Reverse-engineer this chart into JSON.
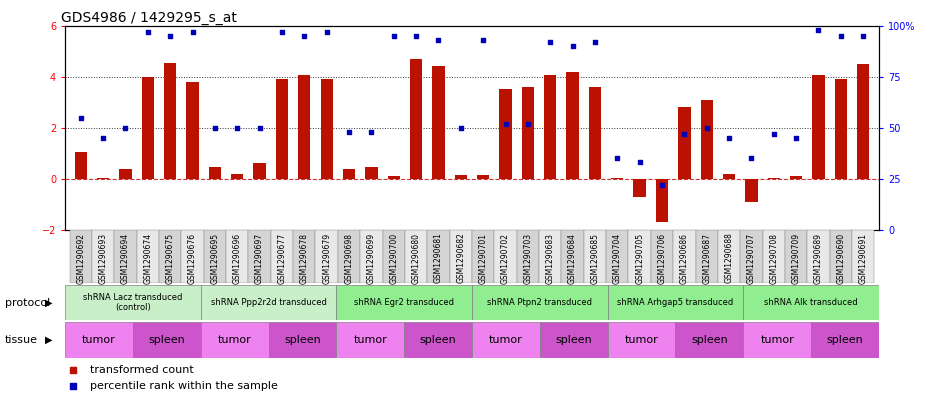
{
  "title": "GDS4986 / 1429295_s_at",
  "sample_ids": [
    "GSM1290692",
    "GSM1290693",
    "GSM1290694",
    "GSM1290674",
    "GSM1290675",
    "GSM1290676",
    "GSM1290695",
    "GSM1290696",
    "GSM1290697",
    "GSM1290677",
    "GSM1290678",
    "GSM1290679",
    "GSM1290698",
    "GSM1290699",
    "GSM1290700",
    "GSM1290680",
    "GSM1290681",
    "GSM1290682",
    "GSM1290701",
    "GSM1290702",
    "GSM1290703",
    "GSM1290683",
    "GSM1290684",
    "GSM1290685",
    "GSM1290704",
    "GSM1290705",
    "GSM1290706",
    "GSM1290686",
    "GSM1290687",
    "GSM1290688",
    "GSM1290707",
    "GSM1290708",
    "GSM1290709",
    "GSM1290689",
    "GSM1290690",
    "GSM1290691"
  ],
  "bar_values": [
    1.05,
    0.05,
    0.4,
    4.0,
    4.55,
    3.8,
    0.45,
    0.2,
    0.6,
    3.9,
    4.05,
    3.9,
    0.4,
    0.45,
    0.1,
    4.7,
    4.4,
    0.15,
    0.15,
    3.5,
    3.6,
    4.05,
    4.2,
    3.6,
    0.05,
    -0.7,
    -1.7,
    2.8,
    3.1,
    0.2,
    -0.9,
    0.05,
    0.1,
    4.05,
    3.9,
    4.5
  ],
  "scatter_pct": [
    55,
    45,
    50,
    97,
    95,
    97,
    50,
    50,
    50,
    97,
    95,
    97,
    48,
    48,
    95,
    95,
    93,
    50,
    93,
    52,
    52,
    92,
    90,
    92,
    35,
    33,
    22,
    47,
    50,
    45,
    35,
    47,
    45,
    98,
    95,
    95
  ],
  "protocols": [
    {
      "label": "shRNA Lacz transduced\n(control)",
      "start": 0,
      "end": 6,
      "color": "#c8efc8"
    },
    {
      "label": "shRNA Ppp2r2d transduced",
      "start": 6,
      "end": 12,
      "color": "#c8efc8"
    },
    {
      "label": "shRNA Egr2 transduced",
      "start": 12,
      "end": 18,
      "color": "#90ee90"
    },
    {
      "label": "shRNA Ptpn2 transduced",
      "start": 18,
      "end": 24,
      "color": "#90ee90"
    },
    {
      "label": "shRNA Arhgap5 transduced",
      "start": 24,
      "end": 30,
      "color": "#90ee90"
    },
    {
      "label": "shRNA Alk transduced",
      "start": 30,
      "end": 36,
      "color": "#90ee90"
    }
  ],
  "tissues": [
    {
      "label": "tumor",
      "start": 0,
      "end": 3,
      "color": "#ee82ee"
    },
    {
      "label": "spleen",
      "start": 3,
      "end": 6,
      "color": "#cc55cc"
    },
    {
      "label": "tumor",
      "start": 6,
      "end": 9,
      "color": "#ee82ee"
    },
    {
      "label": "spleen",
      "start": 9,
      "end": 12,
      "color": "#cc55cc"
    },
    {
      "label": "tumor",
      "start": 12,
      "end": 15,
      "color": "#ee82ee"
    },
    {
      "label": "spleen",
      "start": 15,
      "end": 18,
      "color": "#cc55cc"
    },
    {
      "label": "tumor",
      "start": 18,
      "end": 21,
      "color": "#ee82ee"
    },
    {
      "label": "spleen",
      "start": 21,
      "end": 24,
      "color": "#cc55cc"
    },
    {
      "label": "tumor",
      "start": 24,
      "end": 27,
      "color": "#ee82ee"
    },
    {
      "label": "spleen",
      "start": 27,
      "end": 30,
      "color": "#cc55cc"
    },
    {
      "label": "tumor",
      "start": 30,
      "end": 33,
      "color": "#ee82ee"
    },
    {
      "label": "spleen",
      "start": 33,
      "end": 36,
      "color": "#cc55cc"
    }
  ],
  "left_ylim": [
    -2,
    6
  ],
  "left_yticks": [
    -2,
    0,
    2,
    4,
    6
  ],
  "right_yticks_pct": [
    0,
    25,
    50,
    75,
    100
  ],
  "bar_color": "#bb1100",
  "scatter_color": "#0000bb",
  "hline_color": "#cc3333",
  "grid_color": "#333333",
  "background_color": "#ffffff",
  "title_fontsize": 10,
  "axis_tick_fontsize": 7,
  "sample_tick_fontsize": 5.5,
  "label_fontsize": 8,
  "protocol_fontsize": 6,
  "tissue_fontsize": 8
}
